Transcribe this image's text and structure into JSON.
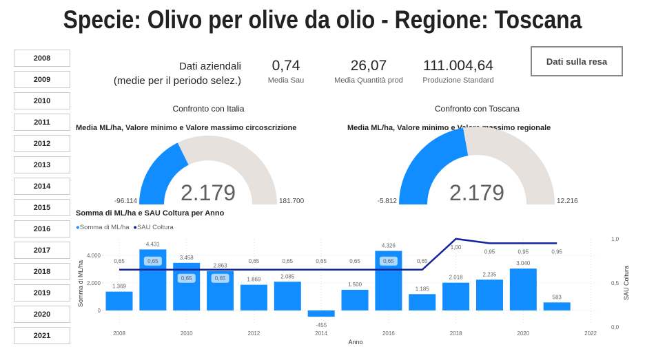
{
  "title": "Specie: Olivo per olive da olio - Regione: Toscana",
  "years": [
    "2008",
    "2009",
    "2010",
    "2011",
    "2012",
    "2013",
    "2014",
    "2015",
    "2016",
    "2017",
    "2018",
    "2019",
    "2020",
    "2021"
  ],
  "kpis": {
    "heading_line1": "Dati aziendali",
    "heading_line2": "(medie per il periodo selez.)",
    "items": [
      {
        "value": "0,74",
        "label": "Media Sau"
      },
      {
        "value": "26,07",
        "label": "Media Quantità prod"
      },
      {
        "value": "111.004,64",
        "label": "Produzione Standard"
      }
    ]
  },
  "resa_button": "Dati sulla resa",
  "gauges": [
    {
      "heading": "Confronto con Italia",
      "title": "Media ML/ha, Valore minimo e Valore massimo circoscrizione",
      "value": 2179,
      "value_label": "2.179",
      "min": -96114,
      "max": 181700,
      "min_label": "-96.114",
      "max_label": "181.700"
    },
    {
      "heading": "Confronto con Toscana",
      "title": "Media ML/ha, Valore minimo e Valore massimo regionale",
      "value": 2179,
      "value_label": "2.179",
      "min": -5812,
      "max": 12216,
      "min_label": "-5.812",
      "max_label": "12.216"
    }
  ],
  "colors": {
    "bar": "#118dff",
    "line": "#12239e",
    "gauge_fill": "#118dff",
    "gauge_bg": "#e6e1dc"
  },
  "chart_data": {
    "type": "bar+line",
    "title": "Somma di ML/ha e SAU Coltura per Anno",
    "legend": [
      "Somma di ML/ha",
      "SAU Coltura"
    ],
    "xlabel": "Anno",
    "ylabel": "Somma di ML/ha",
    "y2label": "SAU Coltura",
    "x": [
      2008,
      2009,
      2010,
      2011,
      2012,
      2013,
      2014,
      2015,
      2016,
      2017,
      2018,
      2019,
      2020,
      2021
    ],
    "bars": [
      1369,
      4431,
      3458,
      2863,
      1869,
      2085,
      -455,
      1500,
      4326,
      1185,
      2018,
      2235,
      3040,
      583
    ],
    "bar_labels": [
      "1.369",
      "4.431",
      "3.458",
      "2.863",
      "1.869",
      "2.085",
      "-455",
      "1.500",
      "4.326",
      "1.185",
      "2.018",
      "2.235",
      "3.040",
      "583"
    ],
    "line": [
      0.65,
      0.65,
      0.65,
      0.65,
      0.65,
      0.65,
      0.65,
      0.65,
      0.65,
      0.65,
      1.0,
      0.95,
      0.95,
      0.95
    ],
    "line_labels": [
      "0,65",
      "0,65",
      "0,65",
      "0,65",
      "0,65",
      "0,65",
      "0,65",
      "0,65",
      "0,65",
      "0,65",
      "1,00",
      "0,95",
      "0,95",
      "0,95"
    ],
    "xticks": [
      2008,
      2010,
      2012,
      2014,
      2016,
      2018,
      2020,
      2022
    ],
    "xtick_labels": [
      "2008",
      "2010",
      "2012",
      "2014",
      "2016",
      "2018",
      "2020",
      "2022"
    ],
    "yticks": [
      0,
      2000,
      4000
    ],
    "ytick_labels": [
      "0",
      "2.000",
      "4.000"
    ],
    "y2ticks": [
      0,
      0.5,
      1.0
    ],
    "y2tick_labels": [
      "0,0",
      "0,5",
      "1,0"
    ],
    "ylim": [
      -1200,
      5200
    ],
    "y2lim": [
      0,
      1.0
    ]
  }
}
